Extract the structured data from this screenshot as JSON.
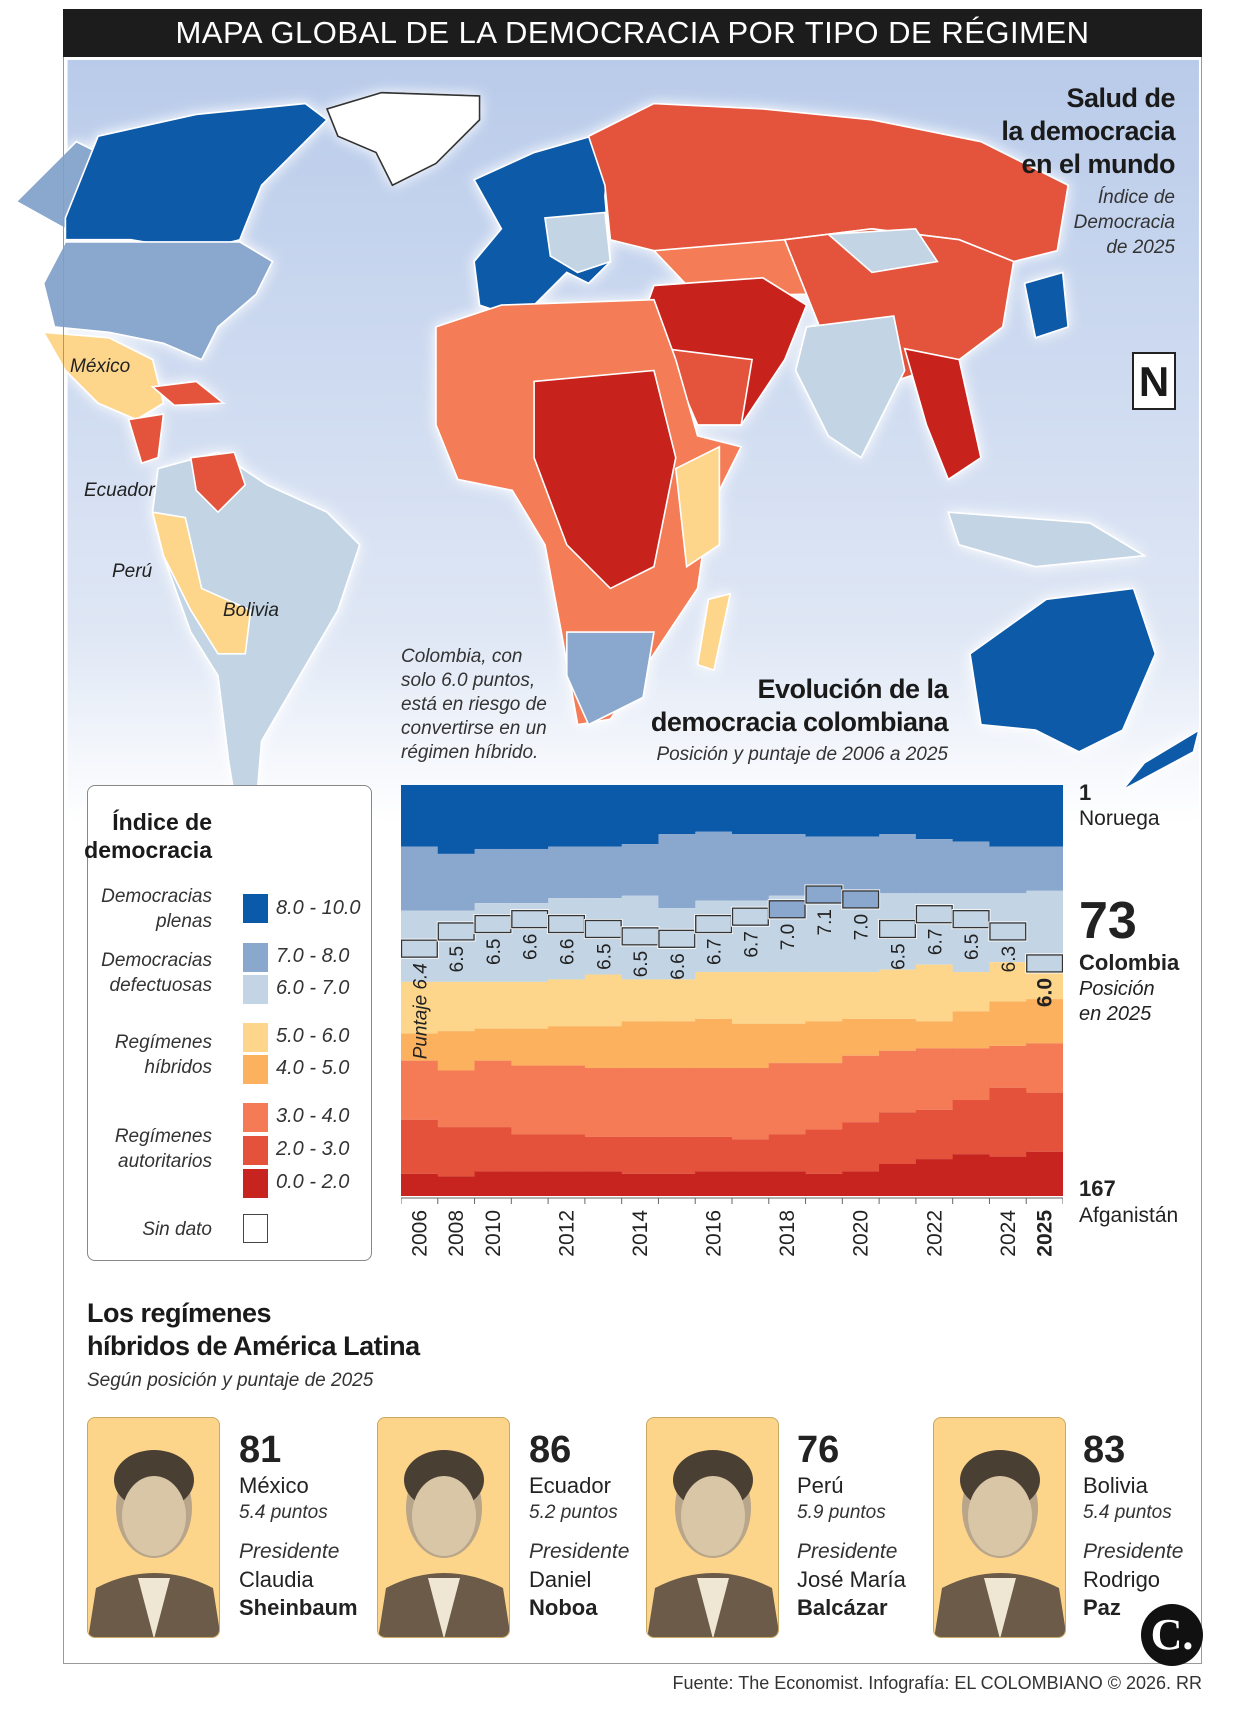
{
  "title": "MAPA GLOBAL DE LA DEMOCRACIA POR TIPO DE RÉGIMEN",
  "map": {
    "heading": [
      "Salud de",
      "la democracia",
      "en el mundo"
    ],
    "subheading": [
      "Índice de",
      "Democracia",
      "de 2025"
    ],
    "logo_letter": "N",
    "labels": {
      "mexico": "México",
      "ecuador": "Ecuador",
      "peru": "Perú",
      "bolivia": "Bolivia"
    }
  },
  "legend": {
    "title": [
      "Índice de",
      "democracia"
    ],
    "categories": [
      {
        "label": [
          "Democracias",
          "plenas"
        ],
        "ranges": [
          "8.0 - 10.0"
        ]
      },
      {
        "label": [
          "Democracias",
          "defectuosas"
        ],
        "ranges": [
          "7.0 - 8.0",
          "6.0 - 7.0"
        ]
      },
      {
        "label": [
          "Regímenes",
          "híbridos"
        ],
        "ranges": [
          "5.0 - 6.0",
          "4.0 - 5.0"
        ]
      },
      {
        "label": [
          "Regímenes",
          "autoritarios"
        ],
        "ranges": [
          "3.0 - 4.0",
          "2.0 - 3.0",
          "0.0 - 2.0"
        ]
      }
    ],
    "no_data": "Sin dato",
    "colors": [
      "#0b5aa9",
      "#8aa7cd",
      "#c3d4e4",
      "#fdd68b",
      "#fbb15e",
      "#f47b56",
      "#e4523b",
      "#c7241f"
    ]
  },
  "annotation": [
    "Colombia, con",
    "solo 6.0 puntos,",
    "está en riesgo de",
    "convertirse en un",
    "régimen híbrido."
  ],
  "chart_data": {
    "type": "area",
    "title": [
      "Evolución de la",
      "democracia colombiana"
    ],
    "subtitle": "Posición y puntaje de 2006 a 2025",
    "years": [
      2006,
      2008,
      2010,
      2011,
      2012,
      2013,
      2014,
      2015,
      2016,
      2017,
      2018,
      2019,
      2020,
      2021,
      2022,
      2023,
      2024,
      2025
    ],
    "x_tick_labels": [
      "2006",
      "2008",
      "2010",
      "",
      "2012",
      "",
      "2014",
      "",
      "2016",
      "",
      "2018",
      "",
      "2020",
      "",
      "2022",
      "",
      "2024",
      "2025"
    ],
    "colombia_score": [
      6.4,
      6.5,
      6.5,
      6.6,
      6.6,
      6.5,
      6.5,
      6.6,
      6.7,
      6.7,
      7.0,
      7.1,
      7.0,
      6.5,
      6.7,
      6.5,
      6.3,
      6.0
    ],
    "colombia_score_labels": [
      "Puntaje 6.4",
      "6.5",
      "6.5",
      "6.6",
      "6.6",
      "6.5",
      "6.5",
      "6.6",
      "6.7",
      "6.7",
      "7.0",
      "7.1",
      "7.0",
      "6.5",
      "6.7",
      "6.5",
      "6.3",
      "6.0"
    ],
    "colombia_rank": [
      67,
      60,
      57,
      55,
      57,
      59,
      62,
      63,
      57,
      54,
      51,
      45,
      47,
      59,
      53,
      55,
      60,
      73
    ],
    "rank_range": [
      1,
      167
    ],
    "band_cumulative_counts": [
      [
        25,
        28,
        26,
        26,
        25,
        25,
        24,
        20,
        19,
        20,
        20,
        21,
        21,
        20,
        22,
        23,
        25,
        25
      ],
      [
        51,
        51,
        48,
        48,
        46,
        46,
        45,
        50,
        47,
        47,
        45,
        44,
        43,
        44,
        44,
        44,
        44,
        43
      ],
      [
        80,
        80,
        80,
        80,
        79,
        77,
        79,
        79,
        76,
        76,
        76,
        76,
        76,
        75,
        73,
        76,
        72,
        73
      ],
      [
        101,
        100,
        99,
        99,
        98,
        98,
        96,
        96,
        95,
        97,
        97,
        96,
        95,
        95,
        96,
        92,
        88,
        87
      ],
      [
        112,
        116,
        112,
        114,
        114,
        115,
        115,
        115,
        115,
        115,
        113,
        113,
        110,
        108,
        107,
        107,
        106,
        105
      ],
      [
        136,
        139,
        139,
        142,
        142,
        143,
        143,
        143,
        143,
        144,
        142,
        140,
        137,
        133,
        132,
        128,
        123,
        125
      ],
      [
        158,
        159,
        157,
        157,
        157,
        157,
        158,
        158,
        157,
        157,
        157,
        158,
        157,
        154,
        152,
        150,
        151,
        149
      ],
      [
        167,
        167,
        167,
        167,
        167,
        167,
        167,
        167,
        167,
        167,
        167,
        167,
        167,
        167,
        167,
        167,
        167,
        167
      ]
    ],
    "right_labels": {
      "top_rank": "1",
      "top_country": "Noruega",
      "colombia_rank": "73",
      "colombia_name": "Colombia",
      "colombia_note": [
        "Posición",
        "en 2025"
      ],
      "bottom_rank": "167",
      "bottom_country": "Afganistán"
    }
  },
  "hybrid": {
    "title": [
      "Los regímenes",
      "híbridos de América Latina"
    ],
    "subtitle": "Según posición y puntaje de 2025",
    "cards": [
      {
        "rank": "81",
        "country": "México",
        "score": "5.4 puntos",
        "role": "Presidente",
        "first": "Claudia",
        "last": "Sheinbaum"
      },
      {
        "rank": "86",
        "country": "Ecuador",
        "score": "5.2 puntos",
        "role": "Presidente",
        "first": "Daniel",
        "last": "Noboa"
      },
      {
        "rank": "76",
        "country": "Perú",
        "score": "5.9 puntos",
        "role": "Presidente",
        "first": "José María",
        "last": "Balcázar"
      },
      {
        "rank": "83",
        "country": "Bolivia",
        "score": "5.4 puntos",
        "role": "Presidente",
        "first": "Rodrigo",
        "last": "Paz"
      }
    ]
  },
  "brand_logo": "C.",
  "footer": "Fuente: The Economist. Infografía: EL COLOMBIANO © 2026. RR"
}
